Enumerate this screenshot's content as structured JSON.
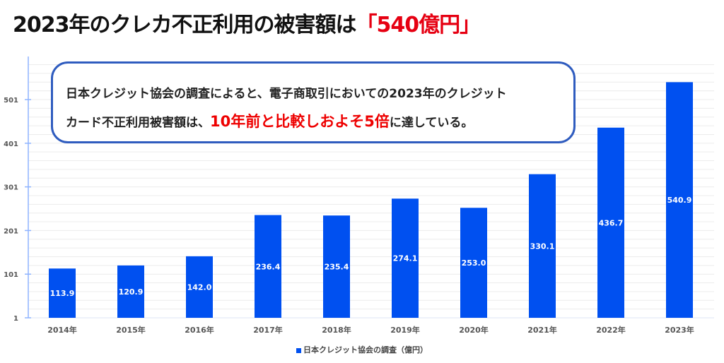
{
  "title": {
    "prefix": "2023年のクレカ不正利用の被害額は",
    "highlight": "「540億円」"
  },
  "callout": {
    "line1": "日本クレジット協会の調査によると、電子商取引においての2023年のクレジット",
    "line2_prefix": "カード不正利用被害額は、",
    "line2_highlight": "10年前と比較しおよそ5倍",
    "line2_suffix": "に達している。"
  },
  "colors": {
    "bar": "#0050f0",
    "axis": "#8fb4ff",
    "highlight": "#e60012",
    "callout_border": "#2f5cbf"
  },
  "chart_data": {
    "type": "bar",
    "categories": [
      "2014年",
      "2015年",
      "2016年",
      "2017年",
      "2018年",
      "2019年",
      "2020年",
      "2021年",
      "2022年",
      "2023年"
    ],
    "series": [
      {
        "name": "日本クレジット協会の調査（億円）",
        "values": [
          113.9,
          120.9,
          142.0,
          236.4,
          235.4,
          274.1,
          253.0,
          330.1,
          436.7,
          540.9
        ]
      }
    ],
    "data_labels": [
      "113.9",
      "120.9",
      "142.0",
      "236.4",
      "235.4",
      "274.1",
      "253.0",
      "330.1",
      "436.7",
      "540.9"
    ],
    "yticks": [
      1,
      101,
      201,
      301,
      401,
      501
    ],
    "ylim": [
      1,
      600
    ],
    "grid": true,
    "legend": "bottom"
  }
}
